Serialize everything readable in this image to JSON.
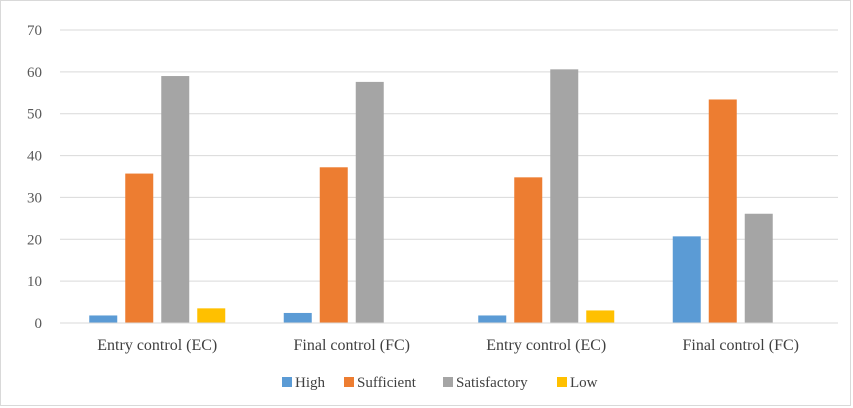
{
  "chart_data": {
    "type": "bar",
    "categories": [
      "Entry control (EC)",
      "Final control (FC)",
      "Entry control (EC)",
      "Final control (FC)"
    ],
    "series": [
      {
        "name": "High",
        "color": "#5b9bd5",
        "values": [
          1.8,
          2.4,
          1.8,
          20.7
        ]
      },
      {
        "name": "Sufficient",
        "color": "#ed7d31",
        "values": [
          35.7,
          37.2,
          34.8,
          53.4
        ]
      },
      {
        "name": "Satisfactory",
        "color": "#a5a5a5",
        "values": [
          59.0,
          57.6,
          60.6,
          26.1
        ]
      },
      {
        "name": "Low",
        "color": "#ffc000",
        "values": [
          3.5,
          0,
          3.0,
          0
        ]
      }
    ],
    "ylim": [
      0,
      70
    ],
    "yticks": [
      0,
      10,
      20,
      30,
      40,
      50,
      60,
      70
    ],
    "grid": true,
    "legend_position": "bottom"
  }
}
